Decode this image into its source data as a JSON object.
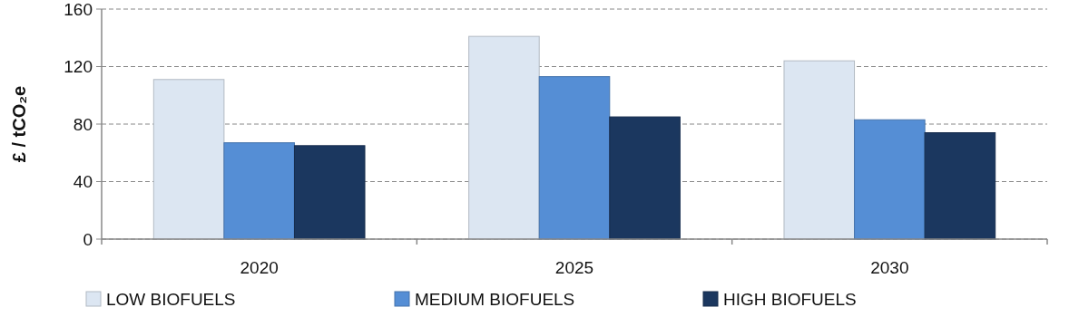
{
  "chart_data": {
    "type": "bar",
    "ylabel": "£ / tCO₂e",
    "categories": [
      "2020",
      "2025",
      "2030"
    ],
    "series": [
      {
        "name": "LOW BIOFUELS",
        "color": "#dce6f2",
        "values": [
          111,
          141,
          124
        ]
      },
      {
        "name": "MEDIUM BIOFUELS",
        "color": "#558ed5",
        "values": [
          67,
          113,
          83
        ]
      },
      {
        "name": "HIGH BIOFUELS",
        "color": "#1b375f",
        "values": [
          65,
          85,
          74
        ]
      }
    ],
    "ylim": [
      0,
      160
    ],
    "yticks": [
      0,
      40,
      80,
      120,
      160
    ],
    "grid": "y",
    "legend": "bottom"
  }
}
